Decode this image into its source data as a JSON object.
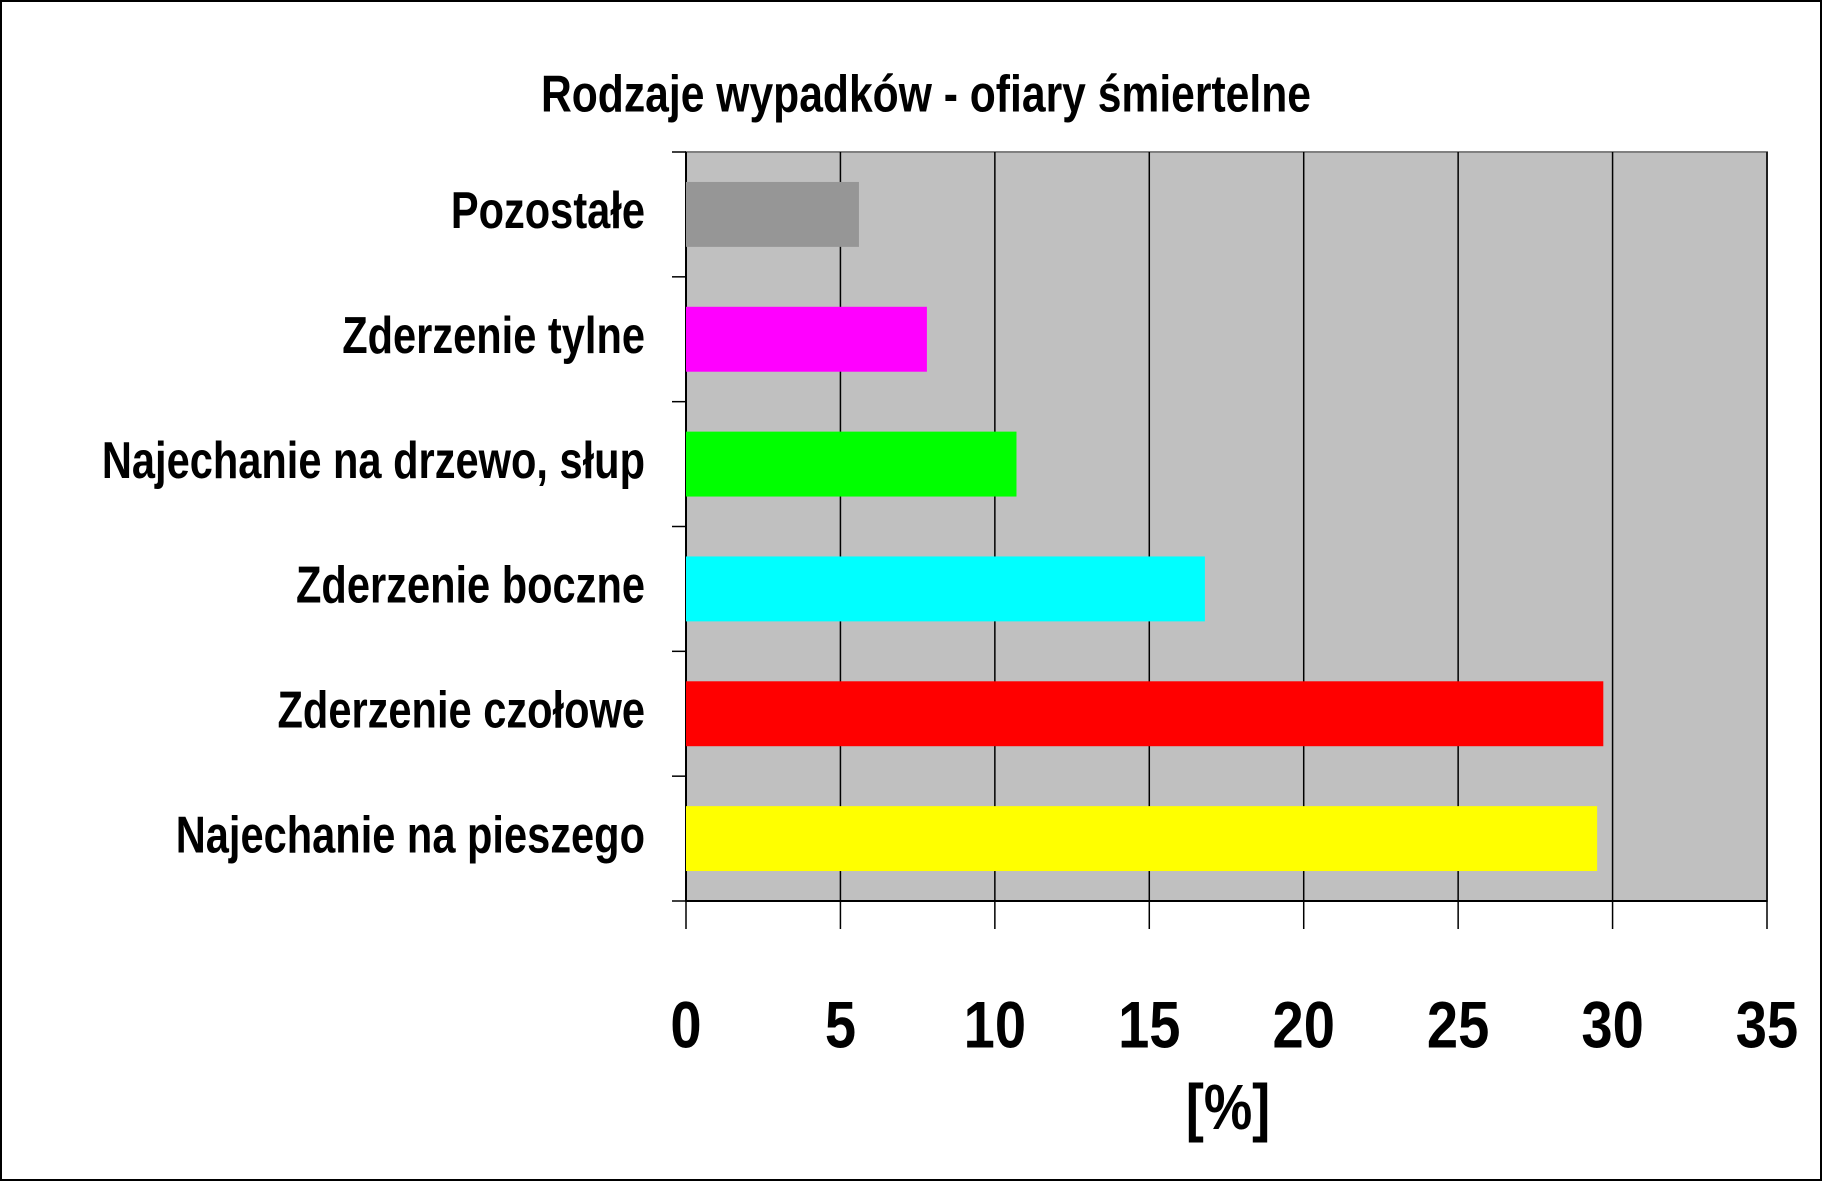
{
  "chart_data": {
    "type": "bar",
    "orientation": "horizontal",
    "title": "Rodzaje wypadków - ofiary śmiertelne",
    "x_label": "[%]",
    "categories": [
      "Pozostałe",
      "Zderzenie tylne",
      "Najechanie na drzewo, słup",
      "Zderzenie boczne",
      "Zderzenie czołowe",
      "Najechanie na pieszego"
    ],
    "values": [
      5.6,
      7.8,
      10.7,
      16.8,
      29.7,
      29.5
    ],
    "colors": [
      "#969696",
      "#ff00ff",
      "#00ff00",
      "#00ffff",
      "#ff0000",
      "#ffff00"
    ],
    "xlim": [
      0,
      35
    ],
    "xticks": [
      0,
      5,
      10,
      15,
      20,
      25,
      30,
      35
    ],
    "grid": true
  }
}
